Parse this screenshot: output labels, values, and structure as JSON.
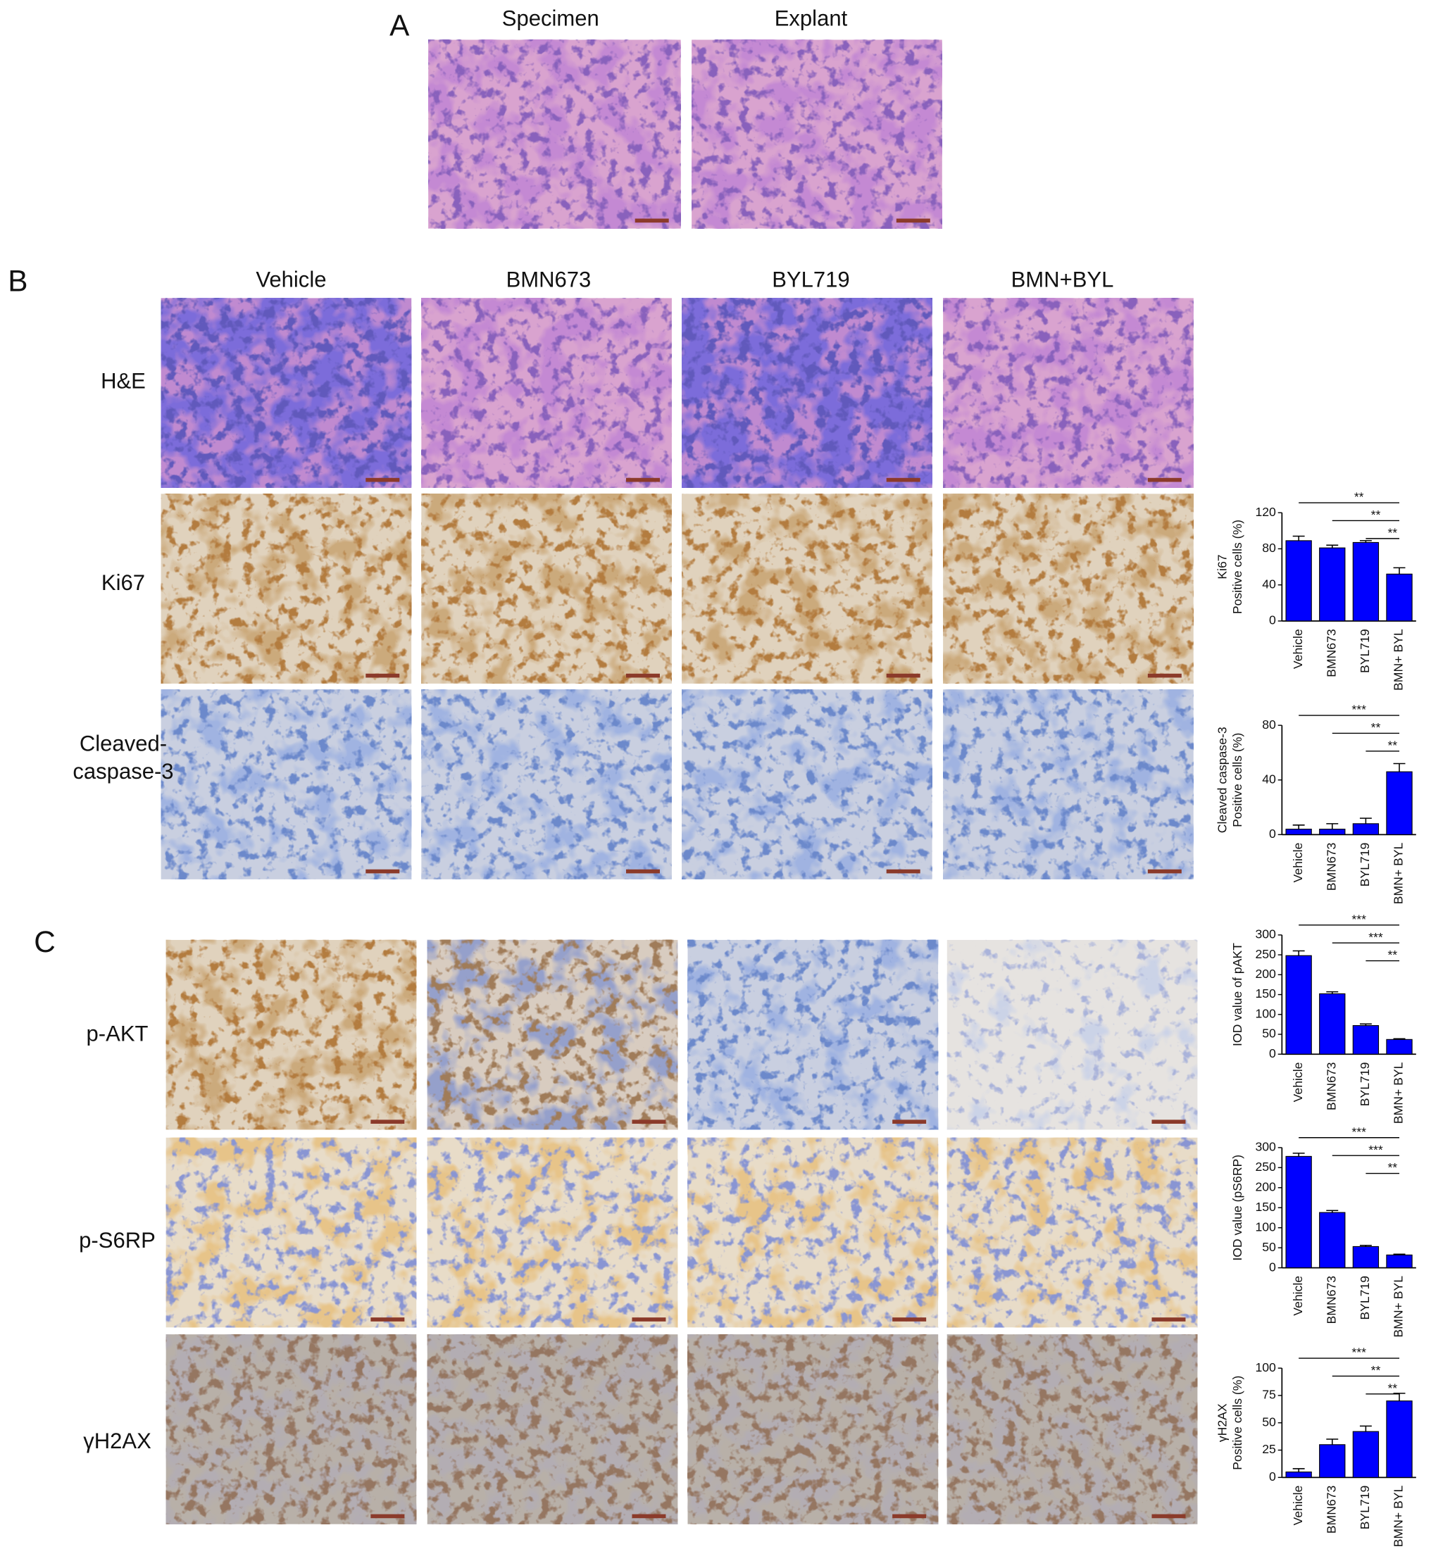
{
  "panel_labels": [
    "A",
    "B",
    "C"
  ],
  "panel_a": {
    "headers": [
      "Specimen",
      "Explant"
    ]
  },
  "panel_b": {
    "headers": [
      "Vehicle",
      "BMN673",
      "BYL719",
      "BMN+BYL"
    ],
    "rows": [
      [
        "H&E"
      ],
      [
        "Ki67"
      ],
      [
        "Cleaved-",
        "caspase-3"
      ]
    ]
  },
  "panel_c": {
    "rows": [
      [
        "p-AKT"
      ],
      [
        "p-S6RP"
      ],
      [
        "γH2AX"
      ]
    ]
  },
  "chart_data": [
    {
      "type": "bar",
      "ylabel": [
        "Ki67",
        "Positive cells (%)"
      ],
      "categories": [
        "Vehicle",
        "BMN673",
        "BYL719",
        "BMN+ BYL"
      ],
      "values": [
        89,
        81,
        87,
        52
      ],
      "errors": [
        5,
        3,
        2,
        7
      ],
      "color": "#0000ff",
      "ylim": [
        0,
        120
      ],
      "yticks": [
        0,
        40,
        80,
        120
      ],
      "significance": [
        "**",
        "**",
        "**"
      ]
    },
    {
      "type": "bar",
      "ylabel": [
        "Cleaved caspase-3",
        "Positive cells (%)"
      ],
      "categories": [
        "Vehicle",
        "BMN673",
        "BYL719",
        "BMN+ BYL"
      ],
      "values": [
        4,
        4,
        8,
        46
      ],
      "errors": [
        3,
        4,
        4,
        6
      ],
      "color": "#0000ff",
      "ylim": [
        0,
        80
      ],
      "yticks": [
        0,
        40,
        80
      ],
      "significance": [
        "***",
        "**",
        "**"
      ]
    },
    {
      "type": "bar",
      "ylabel": [
        "IOD value of pAKT"
      ],
      "categories": [
        "Vehicle",
        "BMN673",
        "BYL719",
        "BMN+ BYL"
      ],
      "values": [
        248,
        152,
        72,
        37
      ],
      "errors": [
        12,
        5,
        4,
        2
      ],
      "color": "#0000ff",
      "ylim": [
        0,
        300
      ],
      "yticks": [
        0,
        50,
        100,
        150,
        200,
        250,
        300
      ],
      "significance": [
        "***",
        "***",
        "**"
      ]
    },
    {
      "type": "bar",
      "ylabel": [
        "IOD value (pS6RP)"
      ],
      "categories": [
        "Vehicle",
        "BMN673",
        "BYL719",
        "BMN+ BYL"
      ],
      "values": [
        278,
        138,
        53,
        32
      ],
      "errors": [
        8,
        5,
        3,
        2
      ],
      "color": "#0000ff",
      "ylim": [
        0,
        300
      ],
      "yticks": [
        0,
        50,
        100,
        150,
        200,
        250,
        300
      ],
      "significance": [
        "***",
        "***",
        "**"
      ]
    },
    {
      "type": "bar",
      "ylabel": [
        "γH2AX",
        "Positive cells (%)"
      ],
      "categories": [
        "Vehicle",
        "BMN673",
        "BYL719",
        "BMN+ BYL"
      ],
      "values": [
        5,
        30,
        42,
        70
      ],
      "errors": [
        3,
        5,
        5,
        7
      ],
      "color": "#0000ff",
      "ylim": [
        0,
        100
      ],
      "yticks": [
        0,
        25,
        50,
        75,
        100
      ],
      "significance": [
        "***",
        "**",
        "**"
      ]
    }
  ]
}
